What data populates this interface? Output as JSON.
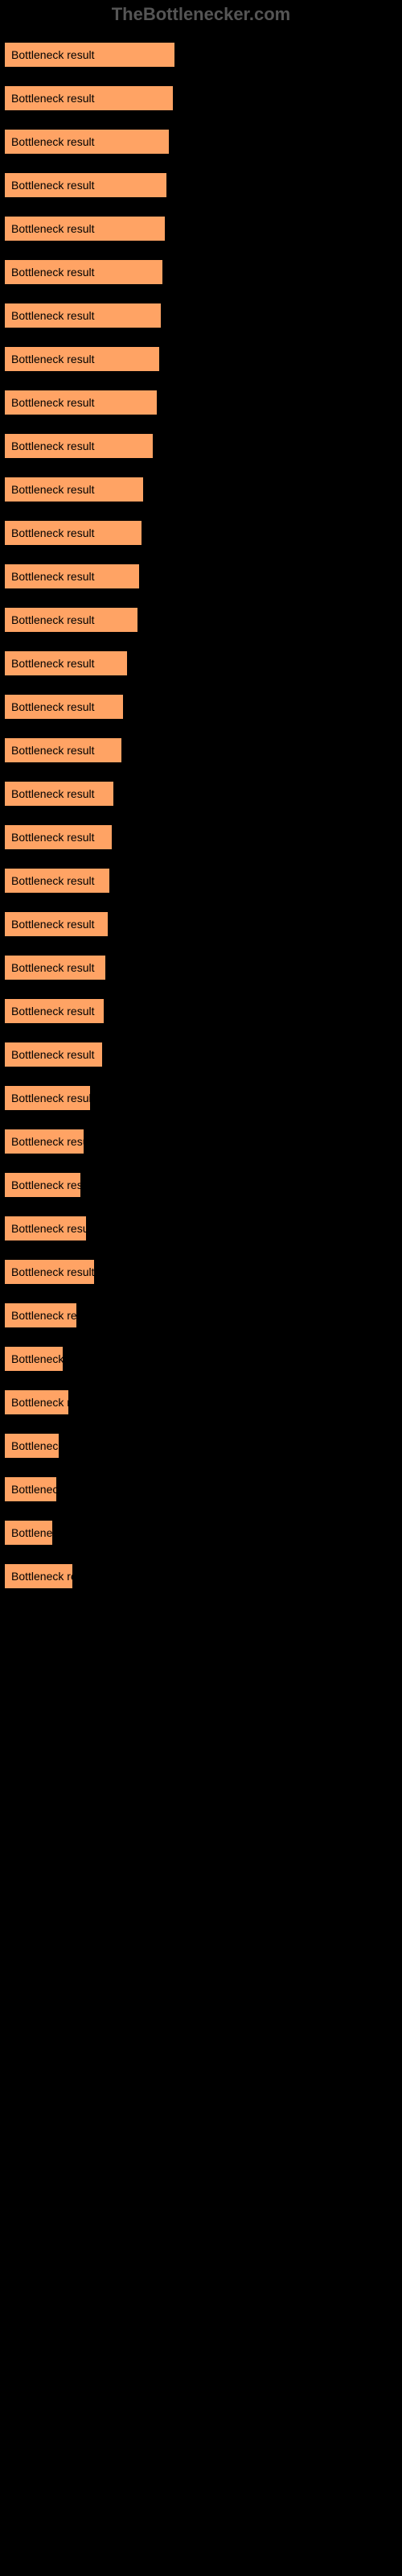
{
  "watermark": "TheBottlenecker.com",
  "chart": {
    "type": "bar",
    "bar_color": "#ffa364",
    "bar_border_color": "#000000",
    "background_color": "#000000",
    "label_color": "#000000",
    "max_value": 100,
    "inner_label": "Bottleneck result",
    "items": [
      {
        "label": "",
        "value": 44,
        "width_pct": 43.5
      },
      {
        "label": "",
        "value": 44,
        "width_pct": 43.0
      },
      {
        "label": "",
        "value": 43,
        "width_pct": 42.0
      },
      {
        "label": "",
        "value": 43,
        "width_pct": 41.5
      },
      {
        "label": "",
        "value": 43,
        "width_pct": 41.0
      },
      {
        "label": "",
        "value": 42,
        "width_pct": 40.5
      },
      {
        "label": "",
        "value": 42,
        "width_pct": 40.0
      },
      {
        "label": "",
        "value": 42,
        "width_pct": 39.5
      },
      {
        "label": "",
        "value": 42,
        "width_pct": 39.0
      },
      {
        "label": "",
        "value": 40,
        "width_pct": 38.0
      },
      {
        "label": "",
        "value": 37,
        "width_pct": 35.5
      },
      {
        "label": "",
        "value": 37,
        "width_pct": 35.0
      },
      {
        "label": "",
        "value": 37,
        "width_pct": 34.5
      },
      {
        "label": "",
        "value": 36,
        "width_pct": 34.0
      },
      {
        "label": "",
        "value": 33,
        "width_pct": 31.5
      },
      {
        "label": "",
        "value": 32,
        "width_pct": 30.5
      },
      {
        "label": "",
        "value": 32,
        "width_pct": 30.0
      },
      {
        "label": "",
        "value": 29,
        "width_pct": 28.0
      },
      {
        "label": "",
        "value": 29,
        "width_pct": 27.5
      },
      {
        "label": "",
        "value": 29,
        "width_pct": 27.0
      },
      {
        "label": "",
        "value": 28,
        "width_pct": 26.5
      },
      {
        "label": "",
        "value": 28,
        "width_pct": 26.0
      },
      {
        "label": "",
        "value": 27,
        "width_pct": 25.5
      },
      {
        "label": "",
        "value": 26,
        "width_pct": 25.0
      },
      {
        "label": "",
        "value": 23,
        "width_pct": 22.0
      },
      {
        "label": "",
        "value": 21,
        "width_pct": 20.5
      },
      {
        "label": "",
        "value": 20,
        "width_pct": 19.5
      },
      {
        "label": "",
        "value": 22,
        "width_pct": 21.0
      },
      {
        "label": "",
        "value": 24,
        "width_pct": 23.0
      },
      {
        "label": "",
        "value": 19,
        "width_pct": 18.5
      },
      {
        "label": "",
        "value": 15,
        "width_pct": 15.0
      },
      {
        "label": "",
        "value": 17,
        "width_pct": 16.5
      },
      {
        "label": "",
        "value": 14,
        "width_pct": 14.0
      },
      {
        "label": "",
        "value": 14,
        "width_pct": 13.5
      },
      {
        "label": "",
        "value": 13,
        "width_pct": 12.5
      },
      {
        "label": "",
        "value": 18,
        "width_pct": 17.5
      }
    ]
  }
}
